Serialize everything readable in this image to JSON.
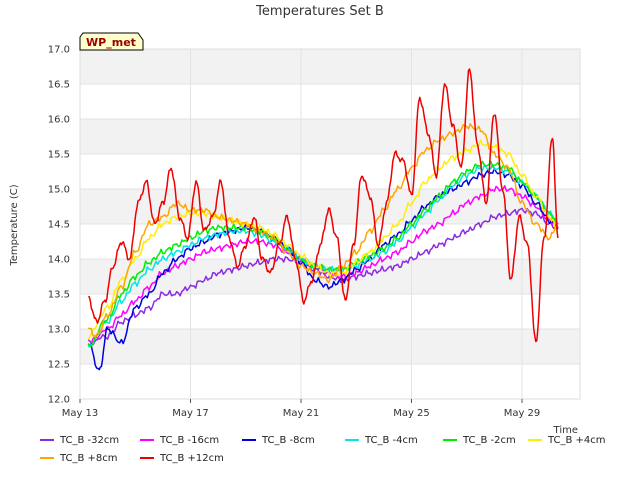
{
  "chart_data": {
    "type": "line",
    "title": "Temperatures Set B",
    "xlabel": "Time",
    "ylabel": "Temperature (C)",
    "site_label": "WP_met",
    "xlim": [
      13,
      31.1
    ],
    "ylim": [
      12.0,
      17.0
    ],
    "x_ticks": [
      {
        "value": 13,
        "label": "May 13"
      },
      {
        "value": 17,
        "label": "May 17"
      },
      {
        "value": 21,
        "label": "May 21"
      },
      {
        "value": 25,
        "label": "May 25"
      },
      {
        "value": 29,
        "label": "May 29"
      }
    ],
    "y_ticks": [
      12.0,
      12.5,
      13.0,
      13.5,
      14.0,
      14.5,
      15.0,
      15.5,
      16.0,
      16.5,
      17.0
    ],
    "grid": true,
    "legend_position": "bottom",
    "series": [
      {
        "name": "TC_B -32cm",
        "color": "#8a2be2",
        "x": [
          13.3,
          14,
          14.5,
          15,
          15.5,
          16,
          16.5,
          17,
          17.5,
          18,
          18.5,
          19,
          19.5,
          20,
          20.5,
          21,
          21.5,
          22,
          22.5,
          23,
          23.5,
          24,
          24.5,
          25,
          25.5,
          26,
          26.5,
          27,
          27.5,
          28,
          28.5,
          29,
          29.5,
          30,
          30.3
        ],
        "y": [
          12.8,
          12.9,
          13.1,
          13.2,
          13.3,
          13.5,
          13.5,
          13.6,
          13.7,
          13.8,
          13.85,
          13.9,
          13.95,
          14.0,
          14.0,
          13.95,
          13.85,
          13.75,
          13.7,
          13.75,
          13.8,
          13.85,
          13.9,
          14.0,
          14.1,
          14.2,
          14.3,
          14.4,
          14.5,
          14.6,
          14.65,
          14.7,
          14.65,
          14.5,
          14.45
        ]
      },
      {
        "name": "TC_B -16cm",
        "color": "#ff00ff",
        "x": [
          13.3,
          14,
          14.5,
          15,
          15.5,
          16,
          16.5,
          17,
          17.5,
          18,
          18.5,
          19,
          19.5,
          20,
          20.5,
          21,
          21.5,
          22,
          22.5,
          23,
          23.5,
          24,
          24.5,
          25,
          25.5,
          26,
          26.5,
          27,
          27.5,
          28,
          28.5,
          29,
          29.5,
          30,
          30.3
        ],
        "y": [
          12.8,
          13.0,
          13.2,
          13.4,
          13.6,
          13.8,
          13.9,
          14.0,
          14.1,
          14.15,
          14.2,
          14.25,
          14.25,
          14.2,
          14.1,
          14.0,
          13.9,
          13.8,
          13.75,
          13.8,
          13.9,
          14.0,
          14.1,
          14.25,
          14.4,
          14.5,
          14.65,
          14.8,
          14.9,
          15.0,
          15.0,
          14.9,
          14.75,
          14.55,
          14.45
        ]
      },
      {
        "name": "TC_B -8cm",
        "color": "#0000dd",
        "x": [
          13.3,
          13.7,
          14,
          14.5,
          15,
          15.5,
          16,
          16.5,
          17,
          17.5,
          18,
          18.5,
          19,
          19.5,
          20,
          20.5,
          21,
          21.5,
          22,
          22.5,
          23,
          23.5,
          24,
          24.5,
          25,
          25.5,
          26,
          26.5,
          27,
          27.5,
          28,
          28.5,
          29,
          29.5,
          30,
          30.3
        ],
        "y": [
          12.8,
          12.4,
          13.0,
          12.8,
          13.3,
          13.5,
          13.8,
          14.0,
          14.15,
          14.25,
          14.35,
          14.4,
          14.45,
          14.4,
          14.3,
          14.15,
          13.95,
          13.7,
          13.6,
          13.7,
          13.85,
          14.0,
          14.2,
          14.35,
          14.55,
          14.75,
          14.9,
          15.0,
          15.1,
          15.2,
          15.25,
          15.2,
          15.05,
          14.8,
          14.55,
          14.45
        ]
      },
      {
        "name": "TC_B -4cm",
        "color": "#00e5e5",
        "x": [
          13.3,
          14,
          14.5,
          15,
          15.5,
          16,
          16.5,
          17,
          17.5,
          18,
          18.5,
          19,
          19.5,
          20,
          20.5,
          21,
          21.5,
          22,
          22.5,
          23,
          23.5,
          24,
          24.5,
          25,
          25.5,
          26,
          26.5,
          27,
          27.5,
          28,
          28.5,
          29,
          29.5,
          30,
          30.3
        ],
        "y": [
          12.75,
          13.1,
          13.4,
          13.65,
          13.85,
          14.0,
          14.1,
          14.2,
          14.3,
          14.35,
          14.4,
          14.4,
          14.35,
          14.25,
          14.15,
          14.0,
          13.9,
          13.85,
          13.85,
          13.9,
          14.0,
          14.1,
          14.25,
          14.45,
          14.65,
          14.85,
          15.05,
          15.2,
          15.3,
          15.3,
          15.25,
          15.1,
          14.9,
          14.65,
          14.5
        ]
      },
      {
        "name": "TC_B -2cm",
        "color": "#00ee00",
        "x": [
          13.3,
          14,
          14.5,
          15,
          15.5,
          16,
          16.5,
          17,
          17.5,
          18,
          18.5,
          19,
          19.5,
          20,
          20.5,
          21,
          21.5,
          22,
          22.5,
          23,
          23.5,
          24,
          24.5,
          25,
          25.5,
          26,
          26.5,
          27,
          27.5,
          28,
          28.5,
          29,
          29.5,
          30,
          30.3
        ],
        "y": [
          12.75,
          13.15,
          13.5,
          13.75,
          13.95,
          14.1,
          14.2,
          14.3,
          14.4,
          14.45,
          14.45,
          14.45,
          14.4,
          14.3,
          14.15,
          14.0,
          13.9,
          13.85,
          13.85,
          13.95,
          14.05,
          14.15,
          14.3,
          14.5,
          14.7,
          14.9,
          15.1,
          15.25,
          15.35,
          15.35,
          15.3,
          15.1,
          14.9,
          14.65,
          14.5
        ]
      },
      {
        "name": "TC_B +4cm",
        "color": "#ffee00",
        "x": [
          13.3,
          14,
          14.5,
          15,
          15.5,
          16,
          16.5,
          17,
          17.5,
          18,
          18.5,
          19,
          19.5,
          20,
          20.5,
          21,
          21.5,
          22,
          22.5,
          23,
          23.5,
          24,
          24.5,
          25,
          25.5,
          26,
          26.5,
          27,
          27.5,
          28,
          28.5,
          29,
          29.5,
          30,
          30.3
        ],
        "y": [
          12.9,
          13.3,
          13.7,
          14.0,
          14.3,
          14.5,
          14.6,
          14.65,
          14.65,
          14.6,
          14.55,
          14.5,
          14.45,
          14.35,
          14.2,
          14.05,
          13.9,
          13.8,
          13.8,
          13.95,
          14.1,
          14.3,
          14.5,
          14.8,
          15.1,
          15.3,
          15.45,
          15.55,
          15.65,
          15.6,
          15.5,
          15.2,
          14.9,
          14.6,
          14.4
        ]
      },
      {
        "name": "TC_B +8cm",
        "color": "#ffa500",
        "x": [
          13.3,
          13.6,
          14,
          14.5,
          15,
          15.5,
          16,
          16.5,
          17,
          17.5,
          18,
          18.5,
          19,
          19.5,
          20,
          20.5,
          21,
          21.5,
          22,
          22.5,
          23,
          23.5,
          24,
          24.5,
          25,
          25.5,
          26,
          26.5,
          27,
          27.5,
          28,
          28.5,
          29,
          29.5,
          30,
          30.3
        ],
        "y": [
          13.0,
          12.9,
          13.2,
          13.6,
          14.1,
          14.5,
          14.6,
          14.8,
          14.7,
          14.7,
          14.6,
          14.55,
          14.5,
          14.4,
          14.3,
          14.1,
          13.9,
          13.8,
          13.7,
          13.9,
          14.1,
          14.4,
          14.7,
          15.0,
          15.3,
          15.55,
          15.7,
          15.8,
          15.9,
          15.85,
          15.5,
          15.3,
          14.8,
          14.5,
          14.3,
          14.5
        ]
      },
      {
        "name": "TC_B +12cm",
        "color": "#ee0000",
        "x": [
          13.3,
          13.6,
          13.9,
          14.2,
          14.5,
          14.8,
          15.1,
          15.4,
          15.7,
          16.0,
          16.3,
          16.6,
          16.9,
          17.2,
          17.5,
          17.8,
          18.1,
          18.4,
          18.7,
          19.0,
          19.3,
          19.6,
          19.9,
          20.2,
          20.5,
          20.8,
          21.1,
          21.4,
          21.7,
          22.0,
          22.3,
          22.6,
          22.9,
          23.2,
          23.5,
          23.8,
          24.1,
          24.4,
          24.7,
          25.0,
          25.3,
          25.6,
          25.9,
          26.2,
          26.5,
          26.8,
          27.1,
          27.4,
          27.7,
          28.0,
          28.3,
          28.6,
          28.9,
          29.2,
          29.5,
          29.8,
          30.1,
          30.3
        ],
        "y": [
          13.45,
          13.1,
          13.4,
          13.9,
          14.25,
          14.0,
          14.8,
          15.1,
          14.5,
          14.8,
          15.3,
          14.6,
          14.3,
          15.1,
          14.4,
          14.6,
          15.1,
          14.3,
          13.9,
          14.2,
          14.6,
          14.0,
          13.8,
          14.2,
          14.6,
          14.0,
          13.4,
          13.7,
          14.2,
          14.7,
          14.3,
          13.4,
          14.2,
          15.2,
          14.9,
          14.2,
          14.8,
          15.5,
          15.4,
          14.9,
          16.3,
          15.8,
          15.2,
          16.5,
          15.9,
          15.3,
          16.7,
          15.6,
          14.8,
          16.1,
          15.0,
          13.7,
          14.6,
          14.2,
          12.8,
          14.3,
          15.75,
          14.3
        ]
      }
    ]
  }
}
